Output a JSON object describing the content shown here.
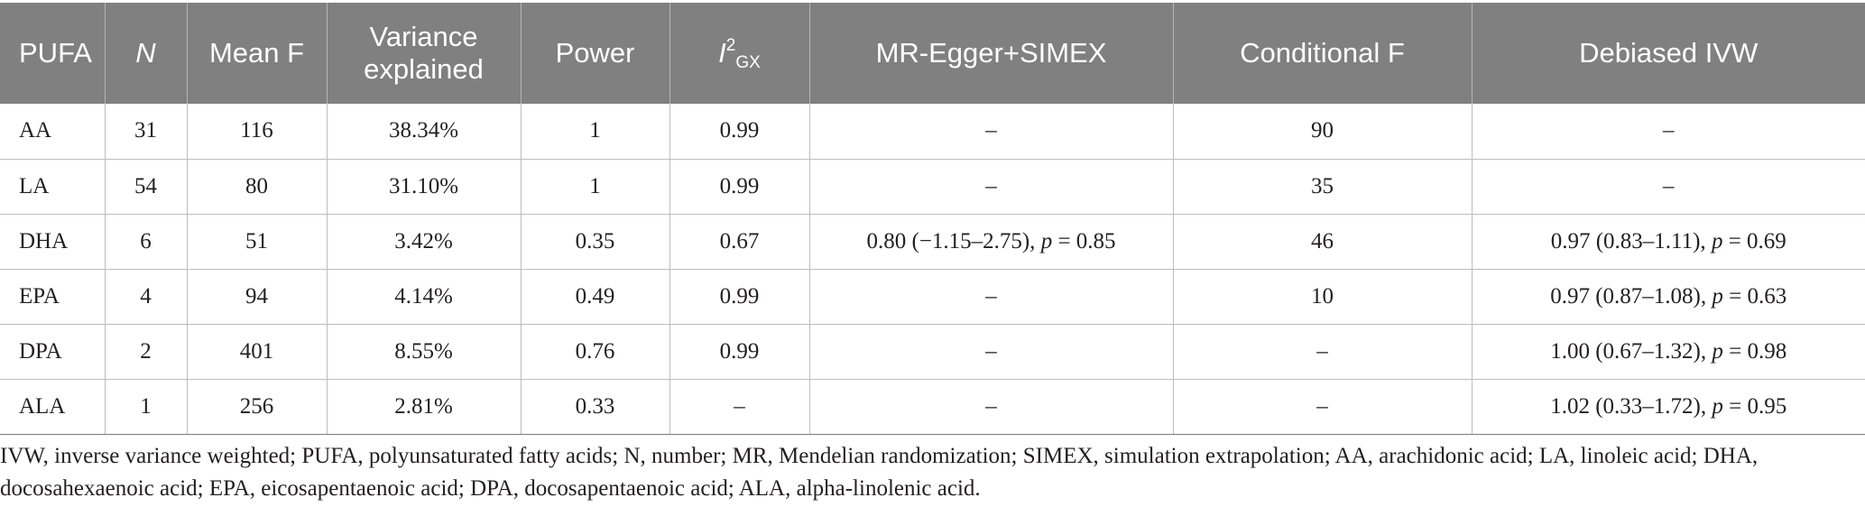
{
  "table": {
    "headers": {
      "pufa": "PUFA",
      "n": "N",
      "mean_f": "Mean F",
      "variance_line1": "Variance",
      "variance_line2": "explained",
      "power": "Power",
      "i2_main": "I",
      "i2_sup": "2",
      "i2_sub": "GX",
      "mr_egger": "MR-Egger+SIMEX",
      "conditional_f": "Conditional F",
      "debiased_ivw": "Debiased IVW"
    },
    "rows": [
      {
        "pufa": "AA",
        "n": "31",
        "mean_f": "116",
        "variance": "38.34%",
        "power": "1",
        "i2": "0.99",
        "mr_egger": {
          "value": "–",
          "p_label": "",
          "p_value": ""
        },
        "conditional_f": "90",
        "debiased_ivw": {
          "value": "–",
          "p_label": "",
          "p_value": ""
        }
      },
      {
        "pufa": "LA",
        "n": "54",
        "mean_f": "80",
        "variance": "31.10%",
        "power": "1",
        "i2": "0.99",
        "mr_egger": {
          "value": "–",
          "p_label": "",
          "p_value": ""
        },
        "conditional_f": "35",
        "debiased_ivw": {
          "value": "–",
          "p_label": "",
          "p_value": ""
        }
      },
      {
        "pufa": "DHA",
        "n": "6",
        "mean_f": "51",
        "variance": "3.42%",
        "power": "0.35",
        "i2": "0.67",
        "mr_egger": {
          "value": "0.80 (−1.15–2.75), ",
          "p_label": "p",
          "p_value": " = 0.85"
        },
        "conditional_f": "46",
        "debiased_ivw": {
          "value": "0.97 (0.83–1.11), ",
          "p_label": "p",
          "p_value": " = 0.69"
        }
      },
      {
        "pufa": "EPA",
        "n": "4",
        "mean_f": "94",
        "variance": "4.14%",
        "power": "0.49",
        "i2": "0.99",
        "mr_egger": {
          "value": "–",
          "p_label": "",
          "p_value": ""
        },
        "conditional_f": "10",
        "debiased_ivw": {
          "value": "0.97 (0.87–1.08), ",
          "p_label": "p",
          "p_value": " = 0.63"
        }
      },
      {
        "pufa": "DPA",
        "n": "2",
        "mean_f": "401",
        "variance": "8.55%",
        "power": "0.76",
        "i2": "0.99",
        "mr_egger": {
          "value": "–",
          "p_label": "",
          "p_value": ""
        },
        "conditional_f": "–",
        "debiased_ivw": {
          "value": "1.00 (0.67–1.32), ",
          "p_label": "p",
          "p_value": " = 0.98"
        }
      },
      {
        "pufa": "ALA",
        "n": "1",
        "mean_f": "256",
        "variance": "2.81%",
        "power": "0.33",
        "i2": "–",
        "mr_egger": {
          "value": "–",
          "p_label": "",
          "p_value": ""
        },
        "conditional_f": "–",
        "debiased_ivw": {
          "value": "1.02 (0.33–1.72), ",
          "p_label": "p",
          "p_value": " = 0.95"
        }
      }
    ]
  },
  "footnote": "IVW, inverse variance weighted; PUFA, polyunsaturated fatty acids; N, number; MR, Mendelian randomization; SIMEX, simulation extrapolation; AA, arachidonic acid; LA, linoleic acid; DHA, docosahexaenoic acid; EPA, eicosapentaenoic acid; DPA, docosapentaenoic acid; ALA, alpha-linolenic acid.",
  "colors": {
    "header_bg": "#808080",
    "header_text": "#ffffff",
    "body_text": "#231f20",
    "grid": "#bdbdbd"
  }
}
